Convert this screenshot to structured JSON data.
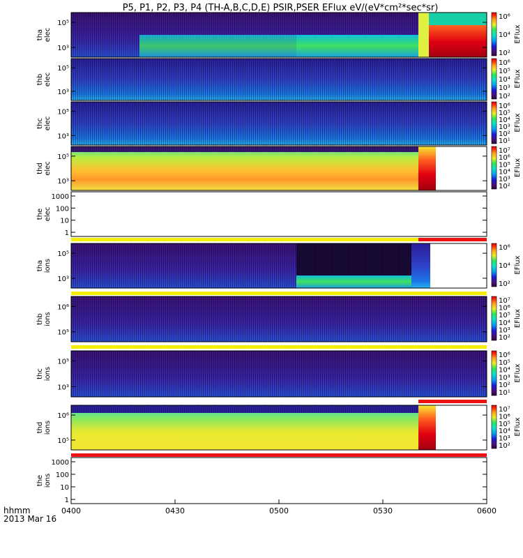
{
  "title": "P5, P1, P2, P3, P4 (TH-A,B,C,D,E) PSIR,PSER EFlux eV/(eV*cm²*sec*sr)",
  "footer": {
    "line1": "hhmm",
    "line2": "2013 Mar 16"
  },
  "chart_data": {
    "type": "heatmap",
    "x_ticks": [
      "0400",
      "0430",
      "0500",
      "0530",
      "0600"
    ],
    "colorbar_label": "EFlux",
    "panels": [
      {
        "label1": "tha",
        "label2": "elec",
        "y_ticks": [
          "10⁵",
          "10³"
        ],
        "cb_ticks": [
          "10⁶",
          "10⁴",
          "10²"
        ]
      },
      {
        "label1": "thb",
        "label2": "elec",
        "y_ticks": [
          "10⁵",
          "10³"
        ],
        "cb_ticks": [
          "10⁶",
          "10⁵",
          "10⁴",
          "10³",
          "10²"
        ]
      },
      {
        "label1": "thc",
        "label2": "elec",
        "y_ticks": [
          "10⁵",
          "10³"
        ],
        "cb_ticks": [
          "10⁶",
          "10⁵",
          "10⁴",
          "10³",
          "10²",
          "10¹"
        ]
      },
      {
        "label1": "thd",
        "label2": "elec",
        "y_ticks": [
          "10⁵",
          "10³"
        ],
        "cb_ticks": [
          "10⁷",
          "10⁶",
          "10⁵",
          "10⁴",
          "10³",
          "10²"
        ]
      },
      {
        "label1": "the",
        "label2": "elec",
        "y_ticks": [
          "1000",
          "100",
          "10",
          "1"
        ],
        "cb_ticks": []
      },
      {
        "label1": "tha",
        "label2": "ions",
        "y_ticks": [
          "10⁵",
          "10³"
        ],
        "cb_ticks": [
          "10⁶",
          "10⁴",
          "10²"
        ]
      },
      {
        "label1": "thb",
        "label2": "ions",
        "y_ticks": [
          "10⁶",
          "10⁵"
        ],
        "cb_ticks": [
          "10⁷",
          "10⁶",
          "10⁵",
          "10⁴",
          "10³",
          "10²"
        ]
      },
      {
        "label1": "thc",
        "label2": "ions",
        "y_ticks": [
          "10⁵",
          "10³"
        ],
        "cb_ticks": [
          "10⁶",
          "10⁵",
          "10⁴",
          "10³",
          "10²",
          "10¹"
        ]
      },
      {
        "label1": "thd",
        "label2": "ions",
        "y_ticks": [
          "10⁶",
          "10⁵"
        ],
        "cb_ticks": [
          "10⁷",
          "10⁶",
          "10⁵",
          "10⁴",
          "10³",
          "10²"
        ]
      },
      {
        "label1": "the",
        "label2": "ions",
        "y_ticks": [
          "1000",
          "100",
          "10",
          "1"
        ],
        "cb_ticks": []
      }
    ]
  }
}
